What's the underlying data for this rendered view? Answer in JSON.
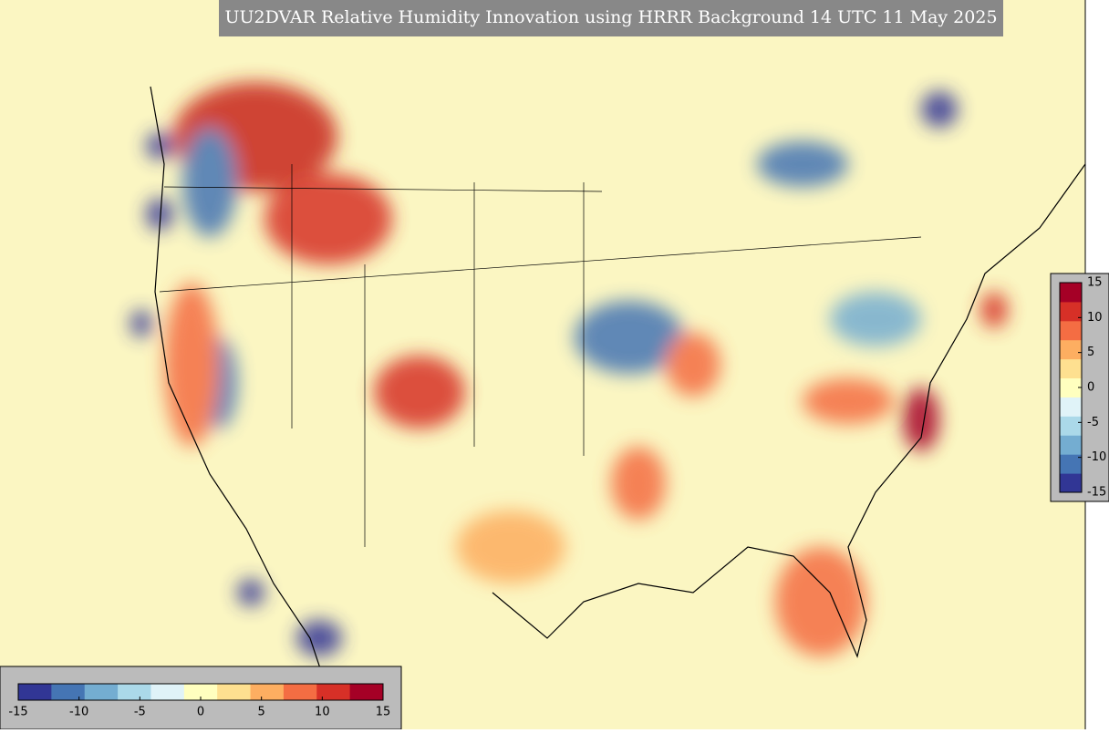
{
  "title": "UU2DVAR Relative Humidity Innovation using HRRR Background 14 UTC 11 May 2025",
  "colorbar": {
    "lim": [
      -15,
      15
    ],
    "ticks": [
      -15,
      -10,
      -5,
      0,
      5,
      10,
      15
    ],
    "colors": [
      "#313695",
      "#4575b4",
      "#74add1",
      "#abd9e9",
      "#e0f3f8",
      "#ffffbf",
      "#fee090",
      "#fdae61",
      "#f46d43",
      "#d73027",
      "#a50026"
    ]
  }
}
